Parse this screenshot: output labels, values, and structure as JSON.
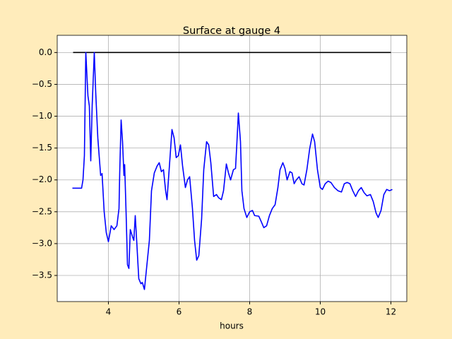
{
  "chart_data": {
    "type": "line",
    "title": "Surface at gauge 4",
    "x_label": "hours",
    "xlim": [
      2.55,
      12.45
    ],
    "xticks": [
      4,
      6,
      8,
      10,
      12
    ],
    "ylim": [
      -3.91,
      0.27
    ],
    "yticks": [
      {
        "value": 0,
        "label": "0.0"
      },
      {
        "value": -0.5,
        "label": "−0.5"
      },
      {
        "value": -1,
        "label": "−1.0"
      },
      {
        "value": -1.5,
        "label": "−1.5"
      },
      {
        "value": -2,
        "label": "−2.0"
      },
      {
        "value": -2.5,
        "label": "−2.5"
      },
      {
        "value": -3,
        "label": "−3.0"
      },
      {
        "value": -3.5,
        "label": "−3.5"
      }
    ],
    "grid": true,
    "series": [
      {
        "color": "#000000",
        "x": [
          3,
          12
        ],
        "values": [
          0,
          0
        ]
      },
      {
        "color": "#0000ff",
        "x": [
          2.98,
          3.24,
          3.28,
          3.32,
          3.36,
          3.42,
          3.46,
          3.5,
          3.54,
          3.6,
          3.64,
          3.7,
          3.78,
          3.82,
          3.88,
          3.94,
          4.0,
          4.08,
          4.16,
          4.24,
          4.3,
          4.32,
          4.36,
          4.4,
          4.44,
          4.46,
          4.5,
          4.54,
          4.58,
          4.62,
          4.68,
          4.72,
          4.76,
          4.8,
          4.86,
          4.92,
          4.96,
          5.02,
          5.1,
          5.16,
          5.22,
          5.3,
          5.38,
          5.44,
          5.5,
          5.56,
          5.62,
          5.66,
          5.72,
          5.8,
          5.86,
          5.92,
          5.98,
          6.04,
          6.1,
          6.18,
          6.24,
          6.3,
          6.38,
          6.44,
          6.5,
          6.56,
          6.64,
          6.7,
          6.78,
          6.84,
          6.9,
          6.98,
          7.06,
          7.12,
          7.2,
          7.26,
          7.34,
          7.4,
          7.46,
          7.54,
          7.6,
          7.64,
          7.68,
          7.74,
          7.78,
          7.84,
          7.92,
          8.0,
          8.08,
          8.14,
          8.26,
          8.34,
          8.4,
          8.48,
          8.56,
          8.64,
          8.72,
          8.8,
          8.86,
          8.94,
          9.0,
          9.06,
          9.14,
          9.2,
          9.26,
          9.32,
          9.4,
          9.48,
          9.54,
          9.62,
          9.7,
          9.78,
          9.84,
          9.92,
          10.0,
          10.06,
          10.14,
          10.22,
          10.3,
          10.4,
          10.5,
          10.6,
          10.68,
          10.76,
          10.84,
          10.92,
          11.0,
          11.08,
          11.16,
          11.24,
          11.32,
          11.42,
          11.5,
          11.58,
          11.64,
          11.72,
          11.8,
          11.88,
          11.96,
          12.04
        ],
        "values": [
          -2.13,
          -2.13,
          -2.0,
          -1.62,
          0.0,
          -0.68,
          -0.84,
          -1.7,
          -0.84,
          0.0,
          -0.62,
          -1.34,
          -1.93,
          -1.9,
          -2.5,
          -2.83,
          -2.97,
          -2.72,
          -2.78,
          -2.72,
          -2.45,
          -1.89,
          -1.06,
          -1.4,
          -1.93,
          -1.76,
          -2.5,
          -3.33,
          -3.39,
          -2.78,
          -2.89,
          -2.95,
          -2.56,
          -2.95,
          -3.55,
          -3.63,
          -3.61,
          -3.72,
          -3.28,
          -2.95,
          -2.17,
          -1.89,
          -1.78,
          -1.73,
          -1.87,
          -1.84,
          -2.17,
          -2.31,
          -1.84,
          -1.21,
          -1.34,
          -1.65,
          -1.62,
          -1.45,
          -1.78,
          -2.12,
          -2.0,
          -1.95,
          -2.45,
          -2.95,
          -3.26,
          -3.19,
          -2.61,
          -1.84,
          -1.4,
          -1.45,
          -1.73,
          -2.26,
          -2.23,
          -2.28,
          -2.31,
          -2.17,
          -1.75,
          -1.89,
          -2.0,
          -1.84,
          -1.82,
          -1.4,
          -0.95,
          -1.4,
          -2.17,
          -2.45,
          -2.59,
          -2.5,
          -2.48,
          -2.56,
          -2.57,
          -2.67,
          -2.75,
          -2.72,
          -2.56,
          -2.45,
          -2.39,
          -2.12,
          -1.84,
          -1.73,
          -1.82,
          -2.0,
          -1.87,
          -1.89,
          -2.06,
          -2.0,
          -1.95,
          -2.06,
          -2.08,
          -1.84,
          -1.51,
          -1.28,
          -1.4,
          -1.84,
          -2.12,
          -2.15,
          -2.06,
          -2.02,
          -2.04,
          -2.12,
          -2.17,
          -2.19,
          -2.06,
          -2.04,
          -2.06,
          -2.17,
          -2.26,
          -2.17,
          -2.12,
          -2.2,
          -2.25,
          -2.23,
          -2.34,
          -2.52,
          -2.59,
          -2.48,
          -2.23,
          -2.15,
          -2.17,
          -2.15
        ]
      }
    ]
  }
}
